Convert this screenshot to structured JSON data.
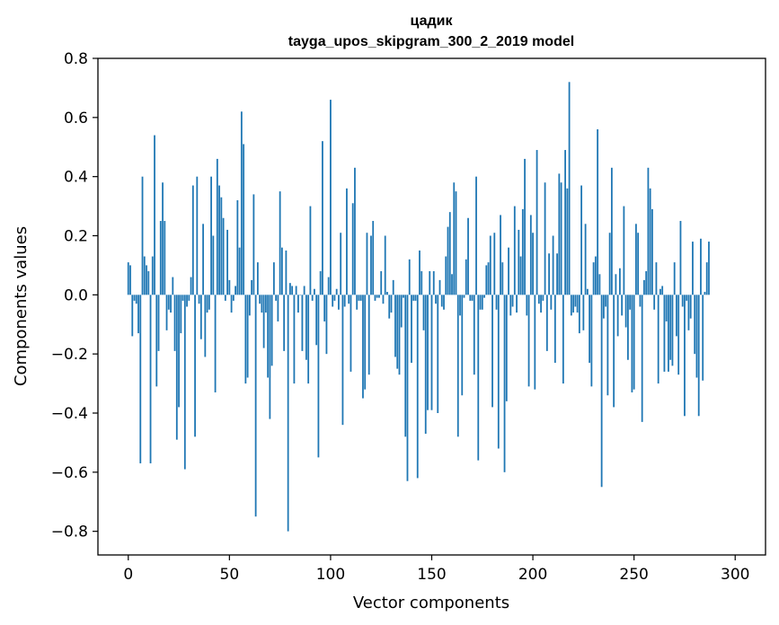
{
  "chart_data": {
    "type": "bar",
    "title": "цадик",
    "subtitle": "tayga_upos_skipgram_300_2_2019 model",
    "xlabel": "Vector components",
    "ylabel": "Components values",
    "xlim": [
      -15,
      315
    ],
    "ylim": [
      -0.88,
      0.8
    ],
    "xticks": [
      0,
      50,
      100,
      150,
      200,
      250,
      300
    ],
    "yticks": [
      -0.8,
      -0.6,
      -0.4,
      -0.2,
      0.0,
      0.2,
      0.4,
      0.6,
      0.8
    ],
    "ytick_labels": [
      "−0.8",
      "−0.6",
      "−0.4",
      "−0.2",
      "0.0",
      "0.2",
      "0.4",
      "0.6",
      "0.8"
    ],
    "bar_color": "#1f77b4",
    "values": [
      0.11,
      0.1,
      -0.14,
      -0.02,
      -0.03,
      -0.13,
      -0.57,
      0.4,
      0.13,
      0.1,
      0.08,
      -0.57,
      0.13,
      0.54,
      -0.31,
      -0.19,
      0.25,
      0.38,
      0.25,
      -0.12,
      -0.05,
      -0.06,
      0.06,
      -0.19,
      -0.49,
      -0.38,
      -0.13,
      -0.02,
      -0.59,
      -0.04,
      -0.02,
      0.06,
      0.37,
      -0.48,
      0.4,
      -0.03,
      -0.15,
      0.24,
      -0.21,
      -0.06,
      -0.05,
      0.4,
      0.2,
      -0.33,
      0.46,
      0.37,
      0.33,
      0.26,
      -0.02,
      0.22,
      0.05,
      -0.06,
      -0.02,
      0.03,
      0.32,
      0.16,
      0.62,
      0.51,
      -0.3,
      -0.28,
      -0.07,
      0.05,
      0.34,
      -0.75,
      0.11,
      -0.03,
      -0.06,
      -0.18,
      -0.06,
      -0.28,
      -0.42,
      -0.24,
      0.11,
      -0.02,
      -0.09,
      0.35,
      0.16,
      -0.19,
      0.15,
      -0.8,
      0.04,
      0.03,
      -0.3,
      0.03,
      -0.06,
      0.0,
      -0.19,
      0.03,
      -0.22,
      -0.3,
      0.3,
      -0.02,
      0.02,
      -0.17,
      -0.55,
      0.08,
      0.52,
      -0.09,
      -0.2,
      0.06,
      0.66,
      -0.04,
      -0.02,
      0.02,
      -0.05,
      0.21,
      -0.44,
      -0.04,
      0.36,
      -0.03,
      -0.26,
      0.31,
      0.43,
      -0.05,
      -0.02,
      -0.02,
      -0.35,
      -0.32,
      0.21,
      -0.27,
      0.2,
      0.25,
      -0.02,
      -0.01,
      -0.01,
      0.08,
      -0.03,
      0.2,
      0.01,
      -0.08,
      -0.06,
      0.05,
      -0.21,
      -0.25,
      -0.27,
      -0.11,
      -0.01,
      -0.48,
      -0.63,
      0.12,
      -0.23,
      -0.02,
      -0.02,
      -0.62,
      0.15,
      0.08,
      -0.12,
      -0.47,
      -0.39,
      0.08,
      -0.39,
      0.08,
      -0.03,
      -0.4,
      0.05,
      -0.04,
      -0.05,
      0.13,
      0.23,
      0.28,
      0.07,
      0.38,
      0.35,
      -0.48,
      -0.07,
      -0.34,
      -0.01,
      0.12,
      0.26,
      -0.02,
      -0.02,
      -0.27,
      0.4,
      -0.56,
      -0.05,
      -0.05,
      -0.01,
      0.1,
      0.11,
      0.2,
      -0.38,
      0.21,
      -0.05,
      -0.52,
      0.27,
      0.11,
      -0.6,
      -0.36,
      0.16,
      -0.07,
      -0.04,
      0.3,
      -0.06,
      0.22,
      0.13,
      0.29,
      0.46,
      -0.07,
      -0.31,
      0.27,
      0.21,
      -0.32,
      0.49,
      -0.03,
      -0.06,
      -0.02,
      0.38,
      -0.19,
      0.14,
      -0.05,
      0.2,
      -0.23,
      0.14,
      0.41,
      0.38,
      -0.3,
      0.49,
      0.36,
      0.72,
      -0.07,
      -0.06,
      -0.04,
      -0.06,
      -0.13,
      0.37,
      -0.12,
      0.24,
      0.02,
      -0.23,
      -0.31,
      0.11,
      0.13,
      0.56,
      0.07,
      -0.65,
      -0.08,
      -0.04,
      -0.34,
      0.21,
      0.43,
      -0.38,
      0.07,
      -0.14,
      0.09,
      -0.07,
      0.3,
      -0.11,
      -0.22,
      -0.05,
      -0.33,
      -0.32,
      0.24,
      0.21,
      -0.04,
      -0.43,
      0.05,
      0.08,
      0.43,
      0.36,
      0.29,
      -0.05,
      0.11,
      -0.3,
      0.02,
      0.03,
      -0.26,
      -0.09,
      -0.26,
      -0.22,
      -0.24,
      0.11,
      -0.14,
      -0.27,
      0.25,
      -0.04,
      -0.41,
      -0.02,
      -0.12,
      -0.08,
      0.18,
      -0.2,
      -0.28,
      -0.41,
      0.19,
      -0.29,
      0.01,
      0.11,
      0.18
    ]
  }
}
